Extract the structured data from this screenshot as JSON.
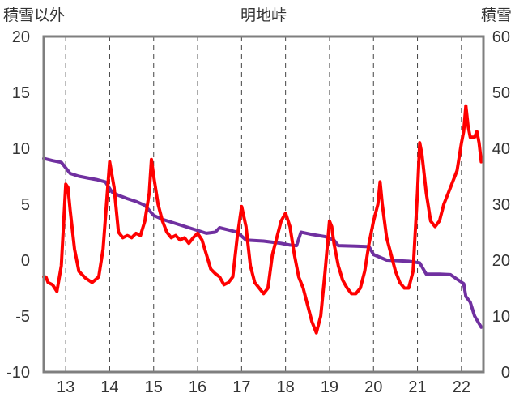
{
  "chart_data": {
    "type": "line",
    "title": "明地峠",
    "y_left_label": "積雪以外",
    "y_right_label": "積雪",
    "y_left_range": [
      -10,
      20
    ],
    "y_left_ticks": [
      "-10",
      "-5",
      "0",
      "5",
      "10",
      "15",
      "20"
    ],
    "y_right_range": [
      0,
      60
    ],
    "y_right_ticks": [
      "0",
      "10",
      "20",
      "30",
      "40",
      "50",
      "60"
    ],
    "x_range": [
      12.5,
      22.5
    ],
    "x_ticks": [
      "13",
      "14",
      "15",
      "16",
      "17",
      "18",
      "19",
      "20",
      "21",
      "22"
    ],
    "grid": "dashed-vertical",
    "series": [
      {
        "color": "#ff0000",
        "axis": "left",
        "points": [
          [
            12.5,
            -1.5
          ],
          [
            12.55,
            -1.5
          ],
          [
            12.6,
            -2.0
          ],
          [
            12.7,
            -2.2
          ],
          [
            12.8,
            -2.8
          ],
          [
            12.9,
            -0.5
          ],
          [
            13.0,
            6.8
          ],
          [
            13.05,
            6.5
          ],
          [
            13.1,
            4.5
          ],
          [
            13.2,
            1.0
          ],
          [
            13.3,
            -1.0
          ],
          [
            13.45,
            -1.6
          ],
          [
            13.6,
            -2.0
          ],
          [
            13.75,
            -1.5
          ],
          [
            13.85,
            1.0
          ],
          [
            14.0,
            8.8
          ],
          [
            14.1,
            6.5
          ],
          [
            14.2,
            2.5
          ],
          [
            14.3,
            2.0
          ],
          [
            14.4,
            2.2
          ],
          [
            14.5,
            2.0
          ],
          [
            14.6,
            2.4
          ],
          [
            14.7,
            2.2
          ],
          [
            14.8,
            3.5
          ],
          [
            14.9,
            6.0
          ],
          [
            14.95,
            9.0
          ],
          [
            15.0,
            7.5
          ],
          [
            15.1,
            5.0
          ],
          [
            15.2,
            3.5
          ],
          [
            15.3,
            2.5
          ],
          [
            15.4,
            2.0
          ],
          [
            15.5,
            2.2
          ],
          [
            15.6,
            1.8
          ],
          [
            15.7,
            2.0
          ],
          [
            15.8,
            1.5
          ],
          [
            15.9,
            2.0
          ],
          [
            16.0,
            2.4
          ],
          [
            16.1,
            1.8
          ],
          [
            16.2,
            0.5
          ],
          [
            16.3,
            -0.8
          ],
          [
            16.4,
            -1.2
          ],
          [
            16.5,
            -1.5
          ],
          [
            16.6,
            -2.2
          ],
          [
            16.7,
            -2.0
          ],
          [
            16.8,
            -1.5
          ],
          [
            16.9,
            2.0
          ],
          [
            17.0,
            4.8
          ],
          [
            17.1,
            3.0
          ],
          [
            17.2,
            -0.5
          ],
          [
            17.3,
            -2.0
          ],
          [
            17.4,
            -2.5
          ],
          [
            17.5,
            -3.0
          ],
          [
            17.6,
            -2.5
          ],
          [
            17.7,
            0.5
          ],
          [
            17.8,
            2.0
          ],
          [
            17.9,
            3.5
          ],
          [
            18.0,
            4.2
          ],
          [
            18.1,
            3.0
          ],
          [
            18.2,
            0.5
          ],
          [
            18.3,
            -1.5
          ],
          [
            18.4,
            -2.5
          ],
          [
            18.5,
            -4.0
          ],
          [
            18.6,
            -5.5
          ],
          [
            18.7,
            -6.5
          ],
          [
            18.8,
            -5.0
          ],
          [
            18.9,
            -1.0
          ],
          [
            19.0,
            3.5
          ],
          [
            19.05,
            3.0
          ],
          [
            19.1,
            1.5
          ],
          [
            19.2,
            -0.5
          ],
          [
            19.3,
            -1.8
          ],
          [
            19.4,
            -2.5
          ],
          [
            19.5,
            -3.0
          ],
          [
            19.6,
            -3.0
          ],
          [
            19.7,
            -2.5
          ],
          [
            19.8,
            -1.0
          ],
          [
            19.9,
            1.5
          ],
          [
            20.0,
            3.5
          ],
          [
            20.1,
            5.0
          ],
          [
            20.15,
            7.0
          ],
          [
            20.2,
            5.0
          ],
          [
            20.3,
            2.0
          ],
          [
            20.4,
            0.5
          ],
          [
            20.5,
            -1.0
          ],
          [
            20.6,
            -2.0
          ],
          [
            20.7,
            -2.5
          ],
          [
            20.8,
            -2.5
          ],
          [
            20.9,
            -1.0
          ],
          [
            21.0,
            6.0
          ],
          [
            21.05,
            10.5
          ],
          [
            21.1,
            9.5
          ],
          [
            21.2,
            6.0
          ],
          [
            21.3,
            3.5
          ],
          [
            21.4,
            3.0
          ],
          [
            21.5,
            3.5
          ],
          [
            21.6,
            5.0
          ],
          [
            21.7,
            6.0
          ],
          [
            21.8,
            7.0
          ],
          [
            21.9,
            8.0
          ],
          [
            22.0,
            10.5
          ],
          [
            22.05,
            11.5
          ],
          [
            22.1,
            13.8
          ],
          [
            22.15,
            12.0
          ],
          [
            22.2,
            11.0
          ],
          [
            22.3,
            11.0
          ],
          [
            22.35,
            11.5
          ],
          [
            22.4,
            10.5
          ],
          [
            22.45,
            8.8
          ]
        ]
      },
      {
        "color": "#7030a0",
        "axis": "right",
        "points": [
          [
            12.5,
            38.2
          ],
          [
            12.7,
            37.8
          ],
          [
            12.9,
            37.5
          ],
          [
            13.1,
            35.5
          ],
          [
            13.3,
            35.0
          ],
          [
            13.5,
            34.7
          ],
          [
            13.7,
            34.4
          ],
          [
            13.9,
            34.0
          ],
          [
            14.05,
            32.2
          ],
          [
            14.2,
            31.6
          ],
          [
            14.4,
            31.0
          ],
          [
            14.6,
            30.5
          ],
          [
            14.8,
            29.8
          ],
          [
            15.0,
            28.0
          ],
          [
            15.2,
            27.3
          ],
          [
            15.4,
            26.8
          ],
          [
            15.6,
            26.3
          ],
          [
            15.8,
            25.8
          ],
          [
            16.0,
            25.3
          ],
          [
            16.2,
            24.8
          ],
          [
            16.4,
            25.0
          ],
          [
            16.5,
            25.8
          ],
          [
            16.7,
            25.4
          ],
          [
            16.9,
            25.0
          ],
          [
            17.1,
            23.6
          ],
          [
            17.3,
            23.5
          ],
          [
            17.5,
            23.4
          ],
          [
            17.7,
            23.2
          ],
          [
            17.9,
            23.0
          ],
          [
            18.1,
            22.7
          ],
          [
            18.25,
            22.6
          ],
          [
            18.35,
            25.0
          ],
          [
            18.6,
            24.6
          ],
          [
            18.9,
            24.2
          ],
          [
            19.1,
            23.6
          ],
          [
            19.2,
            22.6
          ],
          [
            19.6,
            22.5
          ],
          [
            19.9,
            22.4
          ],
          [
            20.0,
            21.0
          ],
          [
            20.3,
            20.0
          ],
          [
            20.8,
            19.8
          ],
          [
            21.05,
            19.5
          ],
          [
            21.2,
            17.5
          ],
          [
            21.5,
            17.5
          ],
          [
            21.75,
            17.4
          ],
          [
            21.9,
            16.6
          ],
          [
            22.05,
            15.8
          ],
          [
            22.1,
            13.5
          ],
          [
            22.2,
            12.5
          ],
          [
            22.3,
            10.0
          ],
          [
            22.45,
            8.0
          ]
        ]
      }
    ]
  }
}
